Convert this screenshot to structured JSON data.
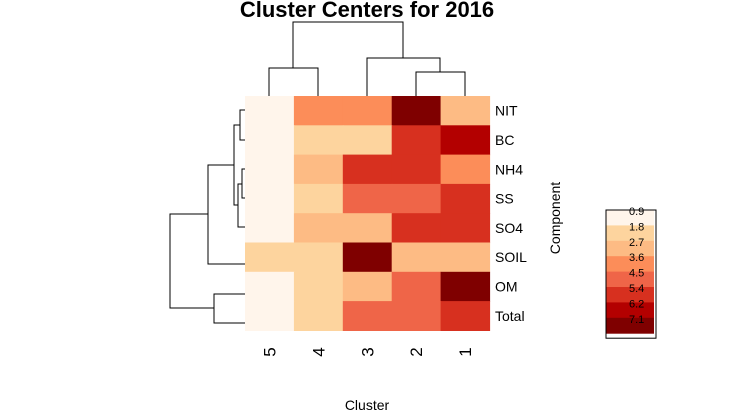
{
  "chart_data": {
    "type": "heatmap",
    "title": "Cluster Centers for 2016",
    "xlabel": "Cluster",
    "ylabel": "Component",
    "columns": [
      "5",
      "4",
      "3",
      "2",
      "1"
    ],
    "rows": [
      "NIT",
      "BC",
      "NH4",
      "SS",
      "SO4",
      "SOIL",
      "OM",
      "Total"
    ],
    "values": [
      [
        0.4,
        3.3,
        3.3,
        7.1,
        2.5
      ],
      [
        0.4,
        1.6,
        1.6,
        5.4,
        6.2
      ],
      [
        0.4,
        2.4,
        5.4,
        5.4,
        3.4
      ],
      [
        0.4,
        1.6,
        4.3,
        4.3,
        5.3
      ],
      [
        0.4,
        2.4,
        2.4,
        5.3,
        5.3
      ],
      [
        1.6,
        1.6,
        7.1,
        2.4,
        2.4
      ],
      [
        0.4,
        1.6,
        2.6,
        4.4,
        7.1
      ],
      [
        0.4,
        1.6,
        4.4,
        4.4,
        5.3
      ]
    ],
    "legend": {
      "ticks": [
        "0.9",
        "1.8",
        "2.7",
        "3.6",
        "4.5",
        "5.4",
        "6.2",
        "7.1"
      ],
      "colors": [
        "#FFF5EB",
        "#FDD49E",
        "#FDBB84",
        "#FC8D59",
        "#EF6548",
        "#D7301F",
        "#B30000",
        "#7F0000"
      ],
      "placement": "right"
    },
    "dendrograms": {
      "columns": "top",
      "rows": "left"
    }
  }
}
